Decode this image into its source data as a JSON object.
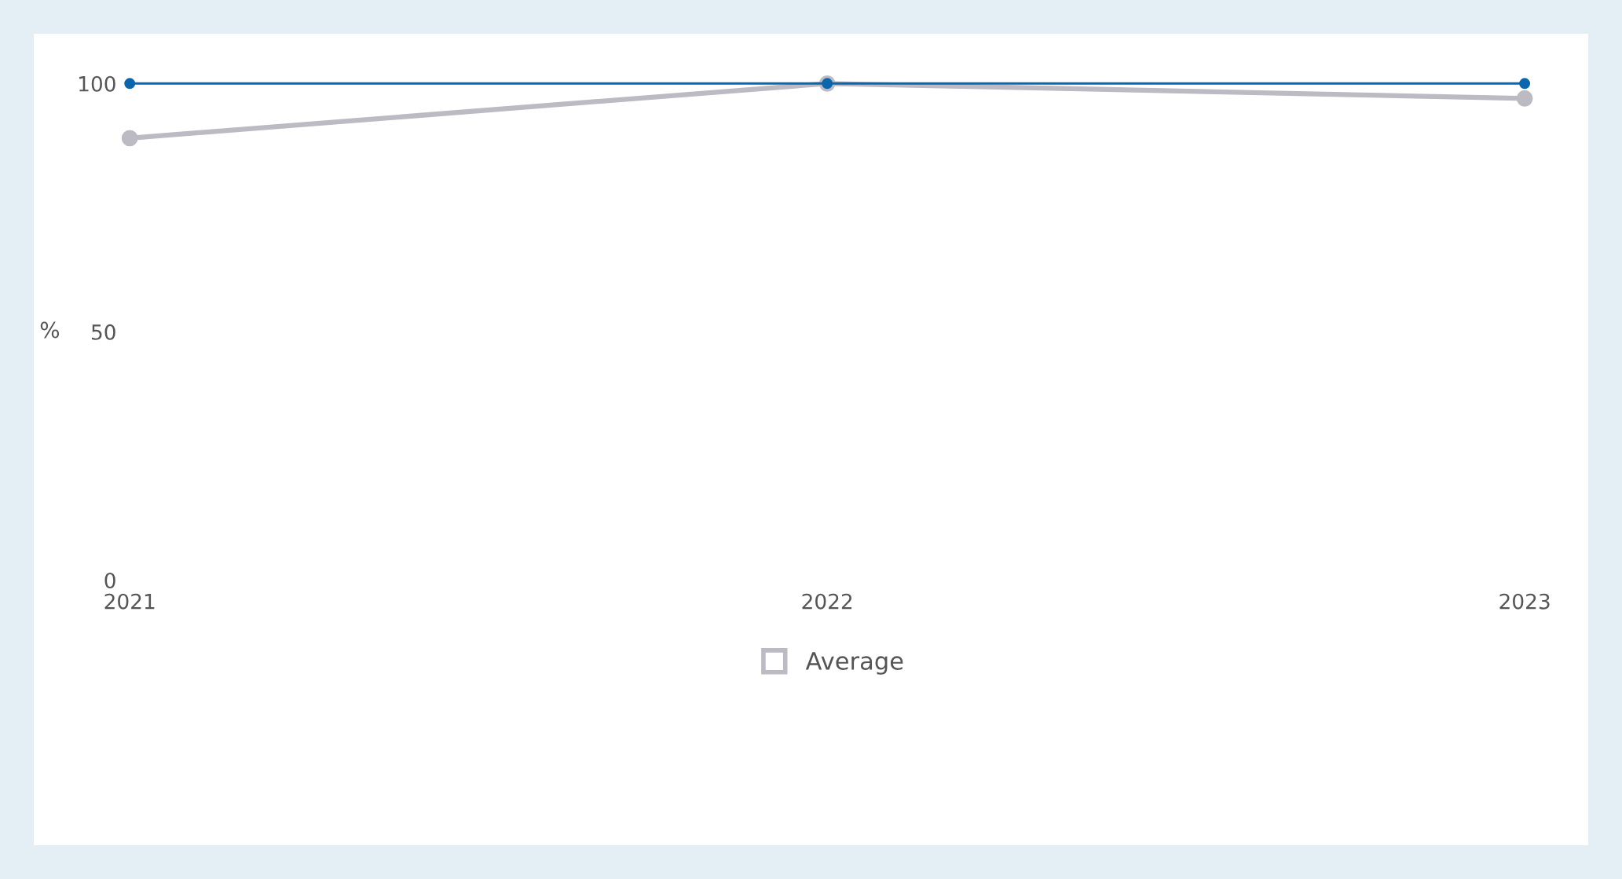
{
  "chart_data": {
    "type": "line",
    "ylabel": "%",
    "categories": [
      "2021",
      "2022",
      "2023"
    ],
    "series": [
      {
        "color": "#0a66ad",
        "values": [
          100,
          100,
          100
        ]
      },
      {
        "name": "Average",
        "color": "#bcbac2",
        "values": [
          89,
          100,
          97
        ]
      }
    ],
    "ylim": [
      0,
      100
    ],
    "yticks": [
      0,
      50,
      100
    ],
    "grid": false,
    "legend": "bottom",
    "marker": "circle",
    "line_style": "solid"
  }
}
